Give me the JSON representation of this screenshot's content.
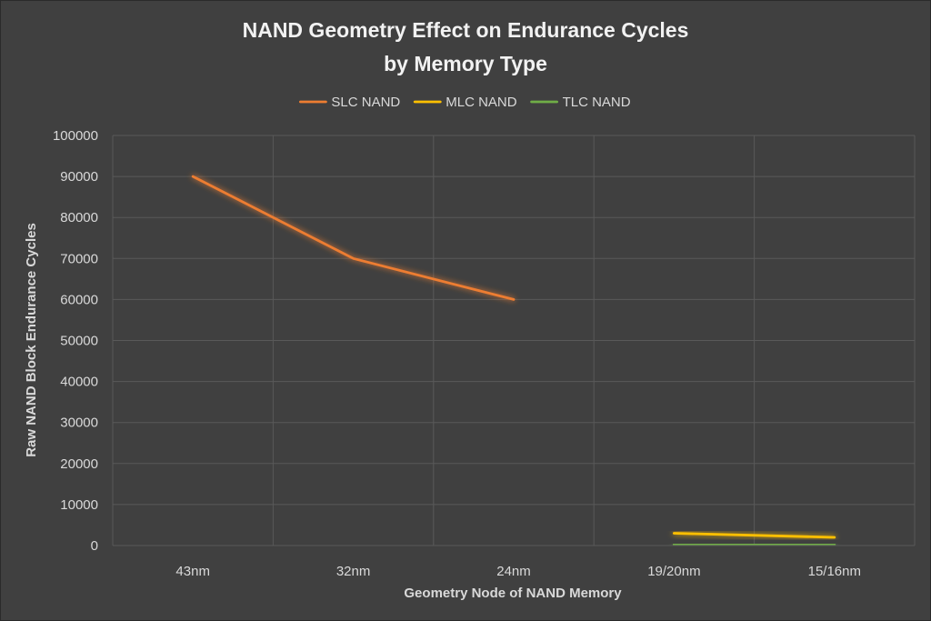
{
  "chart_data": {
    "type": "line",
    "title_lines": [
      "NAND Geometry Effect on Endurance Cycles",
      "by Memory Type"
    ],
    "xlabel": "Geometry Node of NAND Memory",
    "ylabel": "Raw NAND Block Endurance Cycles",
    "categories": [
      "43nm",
      "32nm",
      "24nm",
      "19/20nm",
      "15/16nm"
    ],
    "ylim": [
      0,
      100000
    ],
    "yticks": [
      "0",
      "10000",
      "20000",
      "30000",
      "40000",
      "50000",
      "60000",
      "70000",
      "80000",
      "90000",
      "100000"
    ],
    "grid": true,
    "legend_position": "top",
    "series": [
      {
        "name": "SLC NAND",
        "color": "#ed7d31",
        "values": [
          90000,
          70000,
          60000,
          null,
          null
        ]
      },
      {
        "name": "MLC NAND",
        "color": "#ffc000",
        "values": [
          null,
          null,
          null,
          3000,
          2000
        ]
      },
      {
        "name": "TLC NAND",
        "color": "#70ad47",
        "values": [
          null,
          null,
          null,
          300,
          200
        ]
      }
    ]
  },
  "colors": {
    "background": "#404040",
    "gridline": "#595959",
    "text": "#d9d9d9"
  }
}
